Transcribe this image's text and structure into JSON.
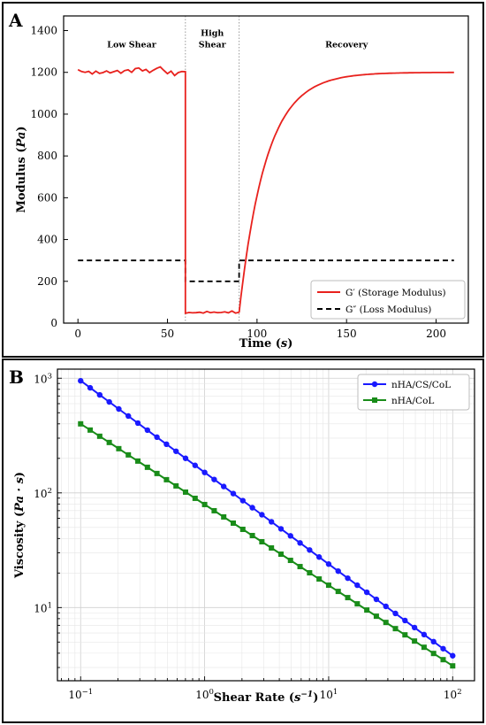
{
  "chart_data": [
    {
      "type": "line",
      "panel_label": "A",
      "xlabel_main": "Time (",
      "xlabel_var": "s",
      "xlabel_end": ")",
      "ylabel_main": "Modulus (",
      "ylabel_var": "Pa",
      "ylabel_end": ")",
      "xlim": [
        -8,
        218
      ],
      "ylim": [
        0,
        1470
      ],
      "xticks": [
        0,
        50,
        100,
        150,
        200
      ],
      "yticks": [
        0,
        200,
        400,
        600,
        800,
        1000,
        1200,
        1400
      ],
      "grid": false,
      "legend_position": "lower-right",
      "annotations": {
        "low_shear": "Low Shear",
        "high_shear_1": "High",
        "high_shear_2": "Shear",
        "recovery": "Recovery"
      },
      "phase_boundaries": [
        60,
        90
      ],
      "series": [
        {
          "name": "G′ (Storage Modulus)",
          "color": "#e8211d",
          "style": "solid",
          "low_shear": {
            "x": [
              0,
              2,
              4,
              6,
              8,
              10,
              12,
              14,
              16,
              18,
              20,
              22,
              24,
              26,
              28,
              30,
              32,
              34,
              36,
              38,
              40,
              42,
              44,
              46,
              48,
              50,
              52,
              54,
              56,
              58,
              60
            ],
            "y": [
              1213,
              1204,
              1200,
              1205,
              1192,
              1206,
              1195,
              1199,
              1207,
              1197,
              1203,
              1209,
              1196,
              1208,
              1212,
              1200,
              1218,
              1221,
              1207,
              1214,
              1199,
              1210,
              1219,
              1226,
              1209,
              1194,
              1206,
              1185,
              1199,
              1204,
              1203
            ]
          },
          "high_shear": {
            "x": [
              60,
              62,
              64,
              66,
              68,
              70,
              72,
              74,
              76,
              78,
              80,
              82,
              84,
              86,
              88,
              90
            ],
            "y": [
              47,
              51,
              49,
              50,
              52,
              48,
              56,
              50,
              53,
              50,
              51,
              54,
              49,
              58,
              48,
              52
            ]
          },
          "recovery": {
            "x_start": 90,
            "x_end": 210,
            "y_start": 50,
            "y_plateau": 1200,
            "time_constant_s": 15
          }
        },
        {
          "name": "G″ (Loss Modulus)",
          "color": "#000000",
          "style": "dashed",
          "x": [
            0,
            60,
            60,
            90,
            90,
            210
          ],
          "y": [
            300,
            300,
            200,
            200,
            300,
            300
          ]
        }
      ]
    },
    {
      "type": "line",
      "panel_label": "B",
      "xlabel_main": "Shear Rate (",
      "xlabel_var": "s",
      "xlabel_sup": "−1",
      "xlabel_end": ")",
      "ylabel_main": "Viscosity (",
      "ylabel_var": "Pa · s",
      "ylabel_end": ")",
      "x_scale": "log",
      "y_scale": "log",
      "xlim": [
        0.065,
        150
      ],
      "ylim": [
        2.3,
        1200
      ],
      "xticks": [
        0.1,
        1,
        10,
        100
      ],
      "xtick_exponents": [
        "−1",
        "0",
        "1",
        "2"
      ],
      "yticks": [
        10,
        100,
        1000
      ],
      "ytick_exponents": [
        "1",
        "2",
        "3"
      ],
      "tick_base": "10",
      "grid": true,
      "legend_position": "upper-right",
      "series": [
        {
          "name": "nHA/CS/CoL",
          "color": "#1a1aff",
          "marker": "circle",
          "x_range": [
            0.1,
            100
          ],
          "points": 40,
          "y_start": 950,
          "y_end": 3.8
        },
        {
          "name": "nHA/CoL",
          "color": "#198c19",
          "marker": "square",
          "x_range": [
            0.1,
            100
          ],
          "points": 40,
          "y_start": 400,
          "y_end": 3.1
        }
      ]
    }
  ]
}
